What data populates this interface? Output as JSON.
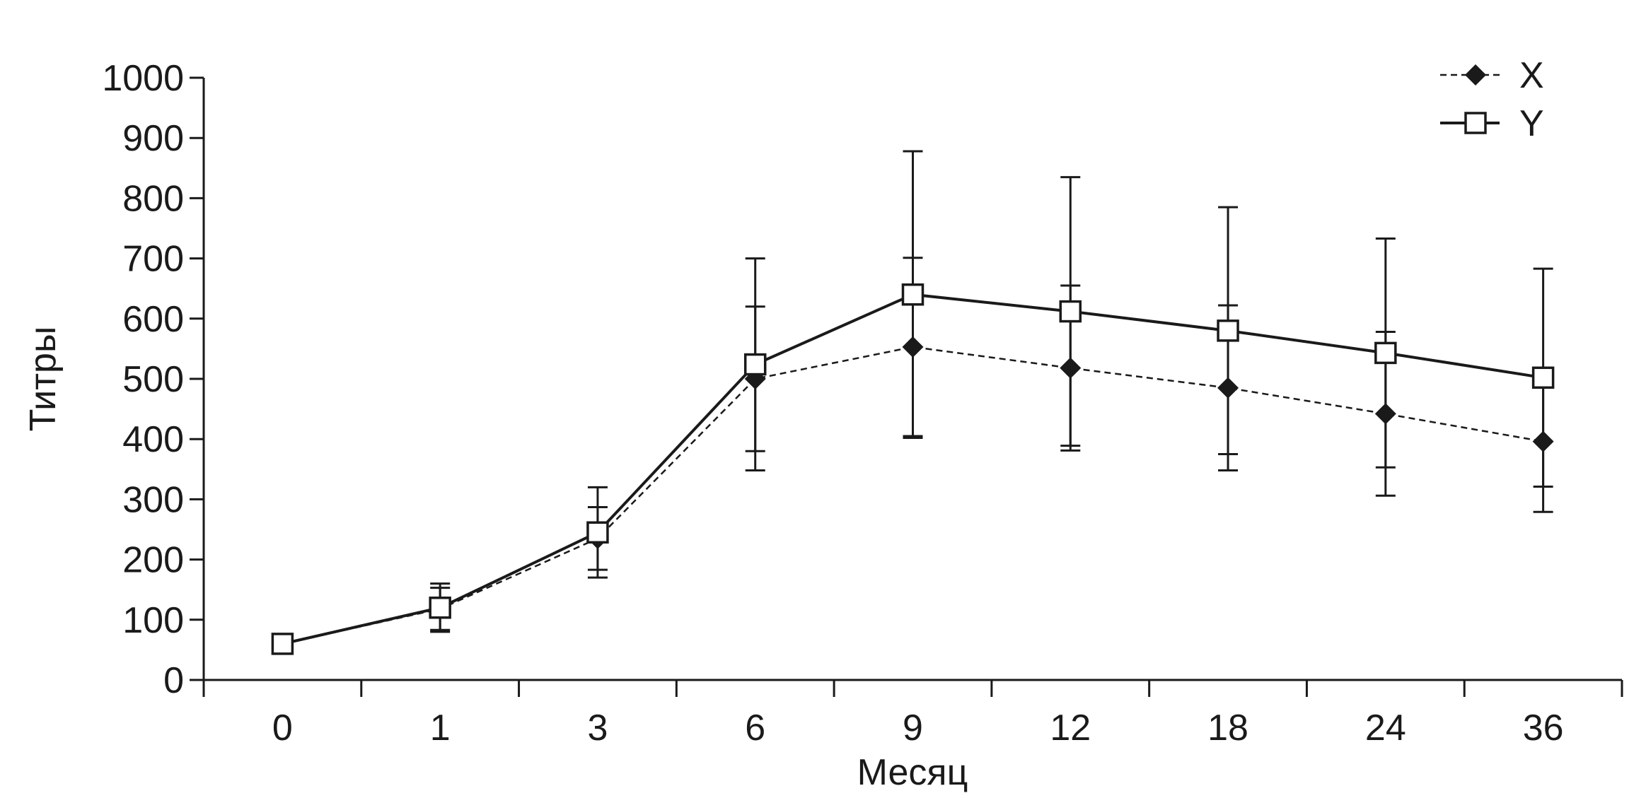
{
  "chart_data": {
    "type": "line",
    "title": "",
    "xlabel": "Месяц",
    "ylabel": "Титры",
    "categories": [
      "0",
      "1",
      "3",
      "6",
      "9",
      "12",
      "18",
      "24",
      "36"
    ],
    "ylim": [
      0,
      1000
    ],
    "yticks": [
      0,
      100,
      200,
      300,
      400,
      500,
      600,
      700,
      800,
      900,
      1000
    ],
    "grid": false,
    "legend_position": "top-right",
    "series": [
      {
        "name": "X",
        "marker": "filled-diamond",
        "line": "dashed",
        "color": "#1a1a1a",
        "values": [
          60,
          118,
          235,
          500,
          553,
          518,
          485,
          442,
          396
        ],
        "yerr": [
          null,
          35,
          52,
          120,
          148,
          137,
          137,
          136,
          117
        ]
      },
      {
        "name": "Y",
        "marker": "open-square",
        "line": "solid",
        "color": "#1a1a1a",
        "values": [
          60,
          120,
          245,
          524,
          640,
          612,
          580,
          543,
          502
        ],
        "yerr": [
          null,
          40,
          75,
          176,
          238,
          223,
          205,
          190,
          181
        ]
      }
    ]
  }
}
